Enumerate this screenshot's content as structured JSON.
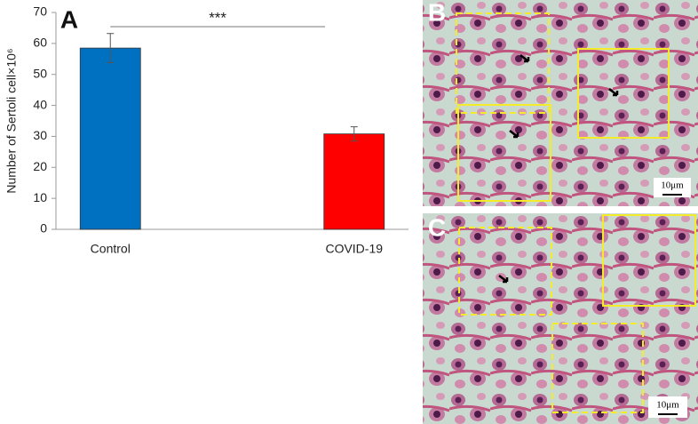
{
  "chart_data": {
    "type": "bar",
    "panel_label": "A",
    "y_label": "Number of Sertoli cell×10⁶",
    "categories": [
      "Control",
      "COVID-19"
    ],
    "values": [
      58.5,
      30.8
    ],
    "errors": [
      4.7,
      2.3
    ],
    "colors": [
      "#0070c0",
      "#ff0000"
    ],
    "ylim": [
      0,
      70
    ],
    "yticks": [
      0,
      10,
      20,
      30,
      40,
      50,
      60,
      70
    ],
    "significance": "***"
  },
  "images": [
    {
      "label": "B",
      "scale_bar": "10μm"
    },
    {
      "label": "C",
      "scale_bar": "10μm"
    }
  ]
}
